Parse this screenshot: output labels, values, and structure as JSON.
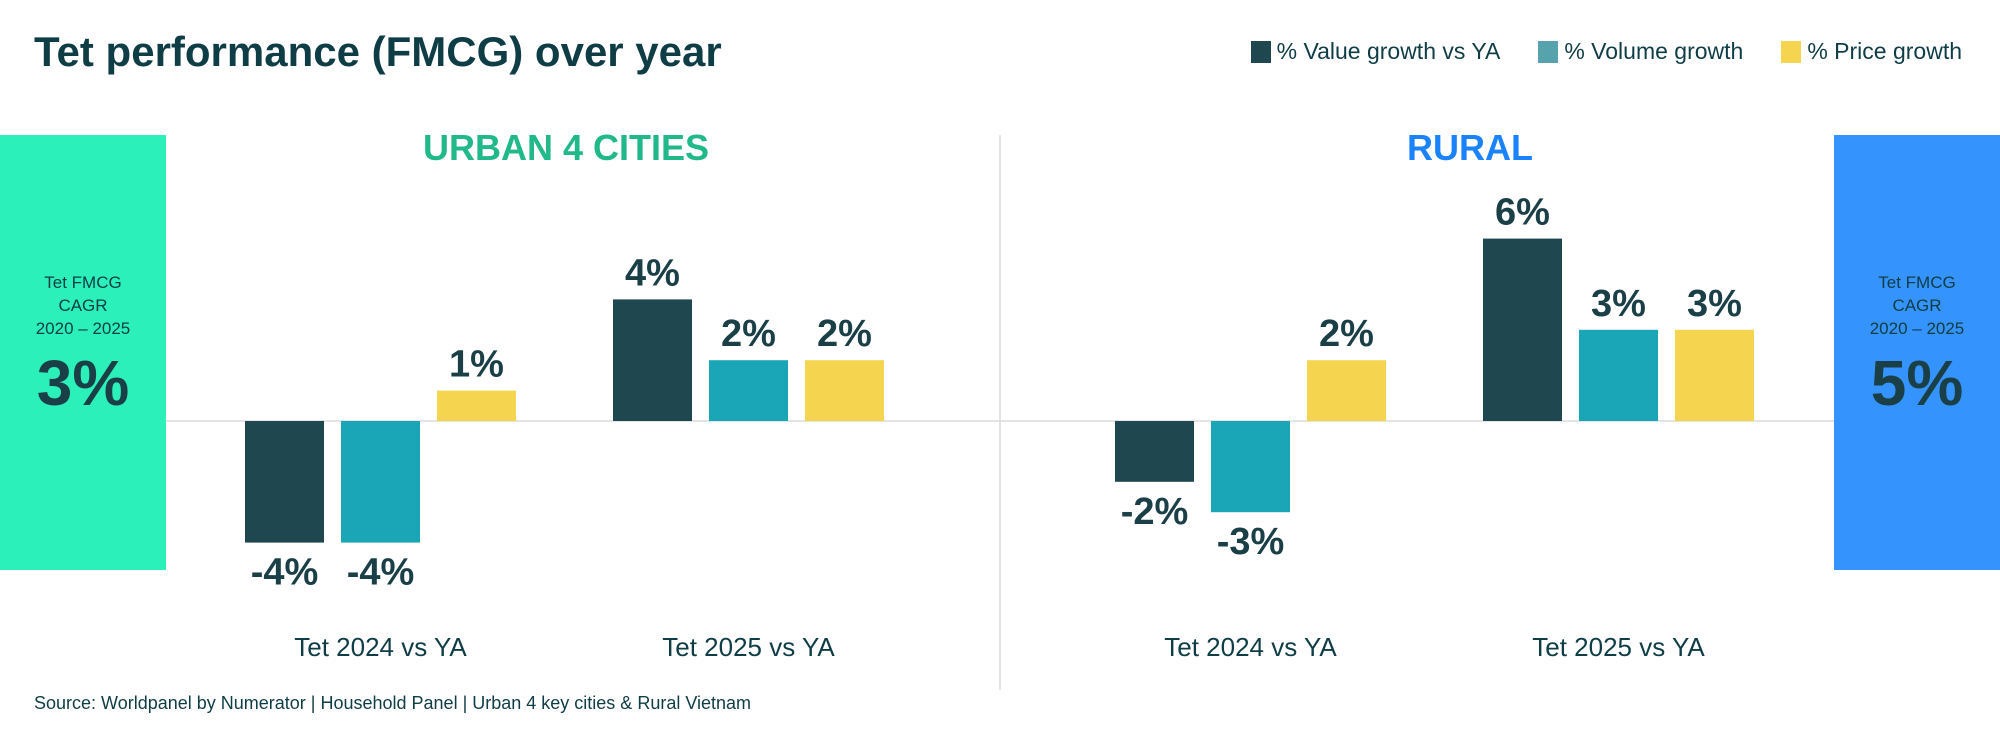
{
  "title": "Tet performance (FMCG) over year",
  "legend": [
    {
      "label": "% Value growth vs YA",
      "color": "#1f4750"
    },
    {
      "label": "% Volume growth",
      "color": "#56a3ae"
    },
    {
      "label": "% Price growth",
      "color": "#f5d54f"
    }
  ],
  "source": "Source: Worldpanel by Numerator | Household Panel | Urban 4 key cities & Rural Vietnam",
  "panels": [
    {
      "title": "URBAN 4 CITIES",
      "title_color": "#21b88a",
      "cagr_lines": [
        "Tet FMCG",
        "CAGR",
        "2020 – 2025"
      ],
      "cagr_value": "3%",
      "cagr_color": "#2cf0b9"
    },
    {
      "title": "RURAL",
      "title_color": "#1a82fb",
      "cagr_lines": [
        "Tet FMCG",
        "CAGR",
        "2020 – 2025"
      ],
      "cagr_value": "5%",
      "cagr_color": "#3593fd"
    }
  ],
  "chart_data": [
    {
      "type": "bar",
      "title": "URBAN 4 CITIES",
      "categories": [
        "Tet 2024 vs YA",
        "Tet 2025 vs YA"
      ],
      "series": [
        {
          "name": "% Value growth vs YA",
          "values": [
            -4,
            4
          ],
          "labels": [
            "-4%",
            "4%"
          ],
          "color": "#1f4750"
        },
        {
          "name": "% Volume growth",
          "values": [
            -4,
            2
          ],
          "labels": [
            "-4%",
            "2%"
          ],
          "color": "#1aa6b7"
        },
        {
          "name": "% Price growth",
          "values": [
            1,
            2
          ],
          "labels": [
            "1%",
            "2%"
          ],
          "color": "#f5d54f"
        }
      ],
      "legend": "top-right",
      "grid": false
    },
    {
      "type": "bar",
      "title": "RURAL",
      "categories": [
        "Tet 2024 vs YA",
        "Tet 2025 vs YA"
      ],
      "series": [
        {
          "name": "% Value growth vs YA",
          "values": [
            -2,
            6
          ],
          "labels": [
            "-2%",
            "6%"
          ],
          "color": "#1f4750"
        },
        {
          "name": "% Volume growth",
          "values": [
            -3,
            3
          ],
          "labels": [
            "-3%",
            "3%"
          ],
          "color": "#1aa6b7"
        },
        {
          "name": "% Price growth",
          "values": [
            2,
            3
          ],
          "labels": [
            "2%",
            "3%"
          ],
          "color": "#f5d54f"
        }
      ],
      "legend": "top-right",
      "grid": false
    }
  ]
}
